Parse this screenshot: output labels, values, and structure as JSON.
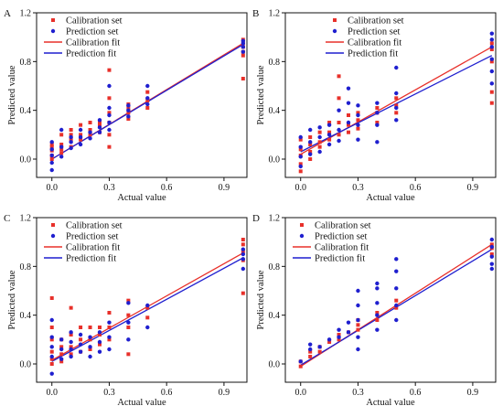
{
  "colors": {
    "calibration": "#e8302a",
    "prediction": "#1f1fcf",
    "axis": "#111111"
  },
  "chart_data": [
    {
      "type": "scatter",
      "panel_label": "A",
      "xlabel": "Actual value",
      "ylabel": "Predicted value",
      "xlim": [
        -0.08,
        1.02
      ],
      "ylim": [
        -0.15,
        1.2
      ],
      "xticks": [
        "0.0",
        "0.3",
        "0.6",
        "0.9"
      ],
      "xtick_values": [
        0,
        0.3,
        0.6,
        0.9
      ],
      "yticks": [
        "0.0",
        "0.4",
        "0.8",
        "1.2"
      ],
      "ytick_values": [
        0,
        0.4,
        0.8,
        1.2
      ],
      "legend": {
        "position": "top-left",
        "entries": [
          "Calibration set",
          "Prediction set",
          "Calibration fit",
          "Prediction fit"
        ]
      },
      "series": [
        {
          "name": "Calibration set",
          "marker": "square",
          "x": [
            0,
            0,
            0,
            0,
            0,
            0.05,
            0.05,
            0.05,
            0.05,
            0.1,
            0.1,
            0.1,
            0.1,
            0.15,
            0.15,
            0.15,
            0.2,
            0.2,
            0.2,
            0.25,
            0.25,
            0.25,
            0.3,
            0.3,
            0.3,
            0.3,
            0.3,
            0.3,
            0.4,
            0.4,
            0.4,
            0.4,
            0.5,
            0.5,
            0.5,
            1,
            1,
            1,
            1,
            1,
            1
          ],
          "y": [
            0,
            0.03,
            0.07,
            0.1,
            0.12,
            0.05,
            0.08,
            0.12,
            0.2,
            0.1,
            0.16,
            0.2,
            0.24,
            0.16,
            0.2,
            0.28,
            0.2,
            0.24,
            0.3,
            0.22,
            0.27,
            0.3,
            0.1,
            0.2,
            0.3,
            0.38,
            0.5,
            0.73,
            0.33,
            0.38,
            0.42,
            0.45,
            0.42,
            0.48,
            0.55,
            0.66,
            0.85,
            0.88,
            0.92,
            0.95,
            0.98
          ]
        },
        {
          "name": "Prediction set",
          "marker": "circle",
          "x": [
            0,
            0,
            0,
            0,
            0,
            0.05,
            0.05,
            0.05,
            0.1,
            0.1,
            0.1,
            0.15,
            0.15,
            0.15,
            0.2,
            0.2,
            0.25,
            0.25,
            0.25,
            0.3,
            0.3,
            0.3,
            0.3,
            0.3,
            0.4,
            0.4,
            0.4,
            0.5,
            0.5,
            0.5,
            1,
            1,
            1,
            1
          ],
          "y": [
            -0.09,
            -0.03,
            0.03,
            0.08,
            0.14,
            0.02,
            0.1,
            0.24,
            0.09,
            0.14,
            0.18,
            0.12,
            0.18,
            0.24,
            0.17,
            0.22,
            0.22,
            0.26,
            0.32,
            0.24,
            0.3,
            0.36,
            0.42,
            0.6,
            0.35,
            0.4,
            0.44,
            0.45,
            0.5,
            0.6,
            0.88,
            0.92,
            0.95,
            0.97
          ]
        },
        {
          "name": "Calibration fit",
          "type": "line",
          "x": [
            0,
            1
          ],
          "y": [
            0.0,
            0.95
          ]
        },
        {
          "name": "Prediction fit",
          "type": "line",
          "x": [
            0,
            1
          ],
          "y": [
            0.0,
            0.94
          ]
        }
      ]
    },
    {
      "type": "scatter",
      "panel_label": "B",
      "xlabel": "Actual value",
      "ylabel": "Predicted value",
      "xlim": [
        -0.08,
        1.02
      ],
      "ylim": [
        -0.15,
        1.2
      ],
      "xticks": [
        "0.0",
        "0.3",
        "0.6",
        "0.9"
      ],
      "xtick_values": [
        0,
        0.3,
        0.6,
        0.9
      ],
      "yticks": [
        "0.0",
        "0.4",
        "0.8",
        "1.2"
      ],
      "ytick_values": [
        0,
        0.4,
        0.8,
        1.2
      ],
      "legend": {
        "position": "top-right",
        "entries": [
          "Calibration set",
          "Prediction set",
          "Calibration fit",
          "Prediction fit"
        ]
      },
      "series": [
        {
          "name": "Calibration set",
          "marker": "square",
          "x": [
            0,
            0,
            0,
            0,
            0,
            0.05,
            0.05,
            0.05,
            0.05,
            0.1,
            0.1,
            0.1,
            0.15,
            0.15,
            0.15,
            0.2,
            0.2,
            0.2,
            0.2,
            0.25,
            0.25,
            0.25,
            0.3,
            0.3,
            0.3,
            0.4,
            0.4,
            0.4,
            0.5,
            0.5,
            0.5,
            1,
            1,
            1,
            1,
            1
          ],
          "y": [
            -0.1,
            -0.04,
            0.03,
            0.08,
            0.16,
            0,
            0.06,
            0.12,
            0.18,
            0.1,
            0.14,
            0.22,
            0.16,
            0.22,
            0.3,
            0.2,
            0.3,
            0.5,
            0.68,
            0.22,
            0.28,
            0.36,
            0.25,
            0.32,
            0.38,
            0.3,
            0.38,
            0.42,
            0.38,
            0.44,
            0.5,
            0.46,
            0.55,
            0.8,
            0.9,
            0.95
          ]
        },
        {
          "name": "Prediction set",
          "marker": "circle",
          "x": [
            0,
            0,
            0,
            0,
            0.05,
            0.05,
            0.05,
            0.1,
            0.1,
            0.1,
            0.15,
            0.15,
            0.15,
            0.2,
            0.2,
            0.2,
            0.25,
            0.25,
            0.25,
            0.3,
            0.3,
            0.3,
            0.3,
            0.4,
            0.4,
            0.4,
            0.4,
            0.5,
            0.5,
            0.5,
            0.5,
            1,
            1,
            1,
            1,
            1,
            1
          ],
          "y": [
            -0.06,
            0.02,
            0.1,
            0.18,
            0.04,
            0.14,
            0.24,
            0.06,
            0.18,
            0.26,
            0.12,
            0.2,
            0.28,
            0.15,
            0.24,
            0.4,
            0.3,
            0.46,
            0.58,
            0.16,
            0.28,
            0.36,
            0.44,
            0.14,
            0.28,
            0.38,
            0.46,
            0.32,
            0.42,
            0.54,
            0.75,
            0.62,
            0.72,
            0.82,
            0.92,
            0.98,
            1.03
          ]
        },
        {
          "name": "Calibration fit",
          "type": "line",
          "x": [
            0,
            1
          ],
          "y": [
            0.04,
            0.92
          ]
        },
        {
          "name": "Prediction fit",
          "type": "line",
          "x": [
            0,
            1
          ],
          "y": [
            0.06,
            0.85
          ]
        }
      ]
    },
    {
      "type": "scatter",
      "panel_label": "C",
      "xlabel": "Actual value",
      "ylabel": "Predicted value",
      "xlim": [
        -0.08,
        1.02
      ],
      "ylim": [
        -0.15,
        1.2
      ],
      "xticks": [
        "0.0",
        "0.3",
        "0.6",
        "0.9"
      ],
      "xtick_values": [
        0,
        0.3,
        0.6,
        0.9
      ],
      "yticks": [
        "0.0",
        "0.4",
        "0.8",
        "1.2"
      ],
      "ytick_values": [
        0,
        0.4,
        0.8,
        1.2
      ],
      "legend": {
        "position": "top-left",
        "entries": [
          "Calibration set",
          "Prediction set",
          "Calibration fit",
          "Prediction fit"
        ]
      },
      "series": [
        {
          "name": "Calibration set",
          "marker": "square",
          "x": [
            0,
            0,
            0,
            0,
            0,
            0,
            0.05,
            0.05,
            0.05,
            0.05,
            0.1,
            0.1,
            0.1,
            0.1,
            0.15,
            0.15,
            0.15,
            0.2,
            0.2,
            0.2,
            0.25,
            0.25,
            0.25,
            0.3,
            0.3,
            0.3,
            0.4,
            0.4,
            0.4,
            0.4,
            0.5,
            0.5,
            1,
            1,
            1,
            1,
            1
          ],
          "y": [
            0,
            0.04,
            0.1,
            0.2,
            0.3,
            0.54,
            0.02,
            0.08,
            0.14,
            0.2,
            0.08,
            0.14,
            0.24,
            0.46,
            0.1,
            0.2,
            0.3,
            0.12,
            0.2,
            0.3,
            0.16,
            0.24,
            0.3,
            0.2,
            0.3,
            0.42,
            0.08,
            0.3,
            0.4,
            0.52,
            0.38,
            0.46,
            0.58,
            0.85,
            0.92,
            0.98,
            1.02
          ]
        },
        {
          "name": "Prediction set",
          "marker": "circle",
          "x": [
            0,
            0,
            0,
            0,
            0,
            0.05,
            0.05,
            0.05,
            0.1,
            0.1,
            0.1,
            0.1,
            0.15,
            0.15,
            0.15,
            0.2,
            0.2,
            0.2,
            0.25,
            0.25,
            0.25,
            0.3,
            0.3,
            0.3,
            0.4,
            0.4,
            0.4,
            0.5,
            0.5,
            1,
            1,
            1,
            1
          ],
          "y": [
            -0.08,
            0.06,
            0.14,
            0.22,
            0.36,
            0.04,
            0.12,
            0.2,
            0.06,
            0.12,
            0.18,
            0.26,
            0.1,
            0.16,
            0.24,
            0.06,
            0.14,
            0.22,
            0.1,
            0.18,
            0.26,
            0.12,
            0.22,
            0.34,
            0.2,
            0.34,
            0.5,
            0.3,
            0.48,
            0.78,
            0.86,
            0.9,
            0.94
          ]
        },
        {
          "name": "Calibration fit",
          "type": "line",
          "x": [
            0,
            1
          ],
          "y": [
            0.03,
            0.91
          ]
        },
        {
          "name": "Prediction fit",
          "type": "line",
          "x": [
            0,
            1
          ],
          "y": [
            0.02,
            0.87
          ]
        }
      ]
    },
    {
      "type": "scatter",
      "panel_label": "D",
      "xlabel": "Actual value",
      "ylabel": "Predicted value",
      "xlim": [
        -0.08,
        1.02
      ],
      "ylim": [
        -0.15,
        1.2
      ],
      "xticks": [
        "0.0",
        "0.3",
        "0.6",
        "0.9"
      ],
      "xtick_values": [
        0,
        0.3,
        0.6,
        0.9
      ],
      "yticks": [
        "0.0",
        "0.4",
        "0.8",
        "1.2"
      ],
      "ytick_values": [
        0,
        0.4,
        0.8,
        1.2
      ],
      "legend": {
        "position": "top-left",
        "entries": [
          "Calibration set",
          "Prediction set",
          "Calibration fit",
          "Prediction fit"
        ]
      },
      "series": [
        {
          "name": "Calibration set",
          "marker": "square",
          "x": [
            0,
            0,
            0.05,
            0.05,
            0.1,
            0.1,
            0.15,
            0.2,
            0.2,
            0.25,
            0.3,
            0.3,
            0.3,
            0.4,
            0.4,
            0.5,
            0.5,
            1,
            1,
            1
          ],
          "y": [
            -0.02,
            0.02,
            0.06,
            0.1,
            0.1,
            0.14,
            0.18,
            0.2,
            0.24,
            0.26,
            0.28,
            0.32,
            0.36,
            0.36,
            0.42,
            0.46,
            0.52,
            0.9,
            0.95,
            0.98
          ]
        },
        {
          "name": "Prediction set",
          "marker": "circle",
          "x": [
            0,
            0.05,
            0.05,
            0.1,
            0.15,
            0.2,
            0.2,
            0.25,
            0.25,
            0.3,
            0.3,
            0.3,
            0.3,
            0.3,
            0.4,
            0.4,
            0.4,
            0.4,
            0.4,
            0.5,
            0.5,
            0.5,
            0.5,
            0.5,
            1,
            1,
            1,
            1,
            1
          ],
          "y": [
            0.02,
            0.12,
            0.16,
            0.14,
            0.2,
            0.22,
            0.28,
            0.26,
            0.34,
            0.12,
            0.22,
            0.36,
            0.48,
            0.6,
            0.28,
            0.4,
            0.5,
            0.62,
            0.66,
            0.36,
            0.48,
            0.62,
            0.76,
            0.86,
            0.78,
            0.82,
            0.88,
            0.96,
            1.02
          ]
        },
        {
          "name": "Calibration fit",
          "type": "line",
          "x": [
            0,
            1
          ],
          "y": [
            -0.02,
            0.98
          ]
        },
        {
          "name": "Prediction fit",
          "type": "line",
          "x": [
            0,
            1
          ],
          "y": [
            -0.01,
            0.94
          ]
        }
      ]
    }
  ]
}
